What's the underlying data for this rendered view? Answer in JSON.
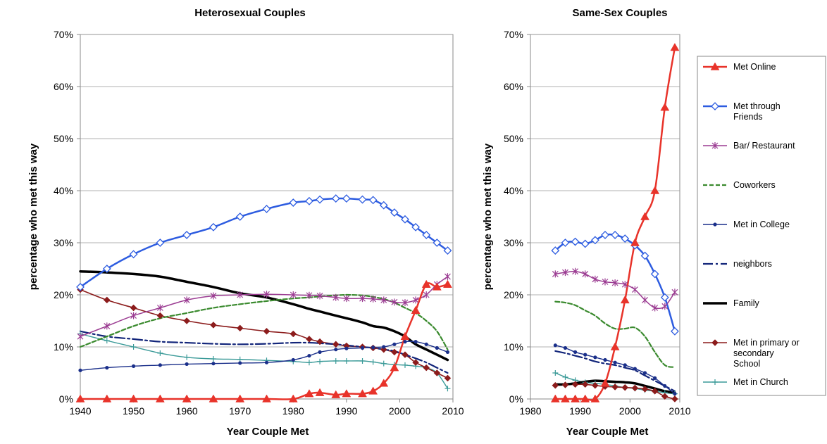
{
  "chart_data": [
    {
      "type": "line",
      "title": "Heterosexual Couples",
      "xlabel": "Year Couple Met",
      "ylabel": "percentage who met this way",
      "xlim": [
        1940,
        2010
      ],
      "ylim": [
        0,
        70
      ],
      "xticks": [
        1940,
        1950,
        1960,
        1970,
        1980,
        1990,
        2000,
        2010
      ],
      "xtick_labels": [
        "1940",
        "1950",
        "1960",
        "1970",
        "1980",
        "1990",
        "2000",
        "2010"
      ],
      "yticks": [
        0,
        10,
        20,
        30,
        40,
        50,
        60,
        70
      ],
      "ytick_labels": [
        "0%",
        "10%",
        "20%",
        "30%",
        "40%",
        "50%",
        "60%",
        "70%"
      ],
      "grid": "horizontal",
      "x": [
        1940,
        1945,
        1950,
        1955,
        1960,
        1965,
        1970,
        1975,
        1980,
        1983,
        1985,
        1988,
        1990,
        1993,
        1995,
        1997,
        1999,
        2001,
        2003,
        2005,
        2007,
        2009
      ],
      "series": [
        {
          "name": "Met Online",
          "values": [
            0,
            0,
            0,
            0,
            0,
            0,
            0,
            0,
            0,
            1,
            1.2,
            0.8,
            1,
            1,
            1.5,
            3,
            6,
            12,
            17,
            22,
            21.5,
            22
          ]
        },
        {
          "name": "Met through Friends",
          "values": [
            21.5,
            25,
            27.8,
            30,
            31.5,
            33,
            35,
            36.5,
            37.7,
            38,
            38.3,
            38.5,
            38.5,
            38.3,
            38.2,
            37.2,
            35.8,
            34.5,
            33,
            31.5,
            30,
            28.5
          ]
        },
        {
          "name": "Bar/ Restaurant",
          "values": [
            12,
            14,
            16,
            17.5,
            19,
            19.8,
            20,
            20.1,
            20,
            19.9,
            19.8,
            19.5,
            19.3,
            19.3,
            19.2,
            19,
            18.6,
            18.5,
            19,
            20,
            22,
            23.5
          ]
        },
        {
          "name": "Coworkers",
          "values": [
            10,
            12,
            14,
            15.5,
            16.5,
            17.5,
            18.2,
            18.8,
            19.3,
            19.5,
            19.7,
            19.9,
            20,
            19.9,
            19.6,
            19.2,
            18.5,
            17.5,
            16.5,
            15,
            13,
            9.5
          ]
        },
        {
          "name": "Met in College",
          "values": [
            5.5,
            6,
            6.3,
            6.5,
            6.7,
            6.8,
            6.9,
            7,
            7.5,
            8.3,
            9,
            9.5,
            9.7,
            9.8,
            9.9,
            10,
            10.5,
            11,
            11,
            10.5,
            9.8,
            9
          ]
        },
        {
          "name": "neighbors",
          "values": [
            13,
            12,
            11.5,
            11,
            10.8,
            10.6,
            10.5,
            10.6,
            10.8,
            10.8,
            10.7,
            10.5,
            10.3,
            10,
            9.8,
            9.5,
            9.2,
            8.5,
            7.8,
            7,
            6,
            5
          ]
        },
        {
          "name": "Family",
          "values": [
            24.5,
            24.3,
            24,
            23.5,
            22.5,
            21.5,
            20.3,
            19.5,
            18.2,
            17.3,
            16.8,
            16,
            15.5,
            14.7,
            14,
            13.7,
            13,
            12,
            10.5,
            9.5,
            8.5,
            7.5
          ]
        },
        {
          "name": "Met in primary or secondary School",
          "values": [
            21,
            19,
            17.5,
            16,
            15,
            14.2,
            13.6,
            13,
            12.5,
            11.5,
            11,
            10.5,
            10.2,
            10,
            9.8,
            9.5,
            9,
            8.5,
            7,
            6,
            5,
            4
          ]
        },
        {
          "name": "Met in Church",
          "values": [
            12.5,
            11.2,
            10,
            8.8,
            8,
            7.7,
            7.6,
            7.4,
            7.2,
            7,
            7.2,
            7.3,
            7.3,
            7.3,
            7.1,
            6.8,
            6.6,
            6.5,
            6.3,
            6,
            5,
            2
          ]
        }
      ]
    },
    {
      "type": "line",
      "title": "Same-Sex Couples",
      "xlabel": "Year Couple Met",
      "ylabel": "percentage who met this way",
      "xlim": [
        1980,
        2010
      ],
      "ylim": [
        0,
        70
      ],
      "xticks": [
        1980,
        1990,
        2000,
        2010
      ],
      "xtick_labels": [
        "1980",
        "1990",
        "2000",
        "2010"
      ],
      "yticks": [
        0,
        10,
        20,
        30,
        40,
        50,
        60,
        70
      ],
      "ytick_labels": [
        "0%",
        "10%",
        "20%",
        "30%",
        "40%",
        "50%",
        "60%",
        "70%"
      ],
      "grid": "horizontal",
      "legend_position": "right",
      "x": [
        1985,
        1987,
        1989,
        1991,
        1993,
        1995,
        1997,
        1999,
        2001,
        2003,
        2005,
        2007,
        2009
      ],
      "series": [
        {
          "name": "Met Online",
          "values": [
            0,
            0,
            0,
            0,
            0,
            3,
            10,
            19,
            30,
            35,
            40,
            56,
            67.5
          ]
        },
        {
          "name": "Met through Friends",
          "values": [
            28.5,
            30,
            30.2,
            29.8,
            30.5,
            31.5,
            31.5,
            30.8,
            29.5,
            27.5,
            24,
            19.5,
            13
          ]
        },
        {
          "name": "Bar/ Restaurant",
          "values": [
            24,
            24.3,
            24.5,
            24,
            23,
            22.5,
            22.3,
            22,
            21,
            19,
            17.5,
            17.8,
            20.5
          ]
        },
        {
          "name": "Coworkers",
          "values": [
            18.7,
            18.5,
            18,
            17,
            16,
            14.5,
            13.5,
            13.5,
            13.7,
            12,
            9,
            6.5,
            6.1
          ]
        },
        {
          "name": "Met in College",
          "values": [
            10.3,
            9.8,
            9,
            8.5,
            8,
            7.5,
            7,
            6.5,
            5.8,
            5,
            4,
            2.5,
            1
          ]
        },
        {
          "name": "neighbors",
          "values": [
            9.2,
            8.8,
            8.3,
            7.8,
            7.2,
            6.8,
            6.5,
            6,
            5.5,
            4.5,
            3.5,
            2.5,
            1.5
          ]
        },
        {
          "name": "Family",
          "values": [
            2.8,
            2.8,
            3,
            3.3,
            3.5,
            3.4,
            3.3,
            3.2,
            3,
            2.5,
            2,
            1.5,
            1.2
          ]
        },
        {
          "name": "Met in primary or secondary School",
          "values": [
            2.6,
            2.7,
            2.8,
            2.8,
            2.6,
            2.4,
            2.3,
            2.2,
            2.1,
            1.9,
            1.5,
            0.5,
            0
          ]
        },
        {
          "name": "Met in Church",
          "values": [
            5,
            4.2,
            3.6,
            3.2,
            3,
            2.8,
            2.5,
            2.2,
            2,
            1.7,
            1.5,
            1.2,
            1
          ]
        }
      ]
    }
  ],
  "styles": [
    {
      "color": "#e8332a",
      "width": 2.5,
      "dash": "",
      "marker": "triangle"
    },
    {
      "color": "#2d5ce0",
      "width": 2.5,
      "dash": "",
      "marker": "diamond-open"
    },
    {
      "color": "#9b3c92",
      "width": 1.5,
      "dash": "",
      "marker": "star"
    },
    {
      "color": "#3a8a2e",
      "width": 2.2,
      "dash": "6 3",
      "marker": "none"
    },
    {
      "color": "#1a2f8a",
      "width": 1.4,
      "dash": "",
      "marker": "dot"
    },
    {
      "color": "#12257a",
      "width": 2.2,
      "dash": "14 4 3 4",
      "marker": "none"
    },
    {
      "color": "#000000",
      "width": 3.5,
      "dash": "",
      "marker": "none"
    },
    {
      "color": "#8c1c1c",
      "width": 1.6,
      "dash": "",
      "marker": "diamond"
    },
    {
      "color": "#3a9a98",
      "width": 1.4,
      "dash": "",
      "marker": "plus"
    }
  ],
  "legend": {
    "entries": [
      [
        "Met Online"
      ],
      [
        "Met through",
        "Friends"
      ],
      [
        "Bar/ Restaurant"
      ],
      [
        "Coworkers"
      ],
      [
        "Met in College"
      ],
      [
        "neighbors"
      ],
      [
        "Family"
      ],
      [
        "Met in primary or",
        "secondary",
        "School"
      ],
      [
        "Met in Church"
      ]
    ]
  }
}
